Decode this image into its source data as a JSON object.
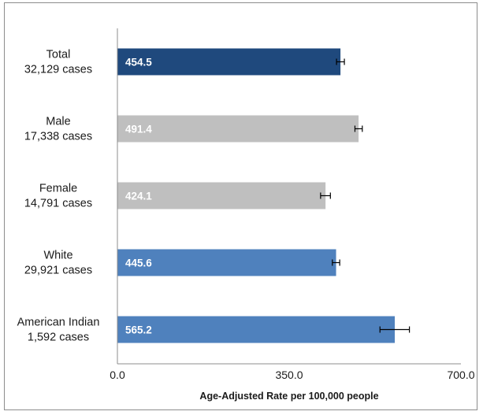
{
  "chart_data": {
    "type": "bar",
    "orientation": "horizontal",
    "categories": [
      "Total",
      "Male",
      "Female",
      "White",
      "American Indian"
    ],
    "case_labels": [
      "32,129 cases",
      "17,338 cases",
      "14,791 cases",
      "29,921 cases",
      "1,592 cases"
    ],
    "values": [
      454.5,
      491.4,
      424.1,
      445.6,
      565.2
    ],
    "value_labels": [
      "454.5",
      "491.4",
      "424.1",
      "445.6",
      "565.2"
    ],
    "error_bars": [
      [
        446.5,
        462.5
      ],
      [
        484.0,
        499.0
      ],
      [
        414.0,
        434.0
      ],
      [
        438.0,
        453.0
      ],
      [
        535.0,
        595.0
      ]
    ],
    "colors": [
      "#1f497d",
      "#bfbfbf",
      "#bfbfbf",
      "#4f81bd",
      "#4f81bd"
    ],
    "xlim": [
      0,
      700
    ],
    "xticks": [
      0,
      350,
      700
    ],
    "xtick_labels": [
      "0.0",
      "350.0",
      "700.0"
    ],
    "xlabel": "Age-Adjusted Rate per 100,000 people",
    "ylabel": "",
    "title": "",
    "grid": false,
    "legend": "none"
  }
}
